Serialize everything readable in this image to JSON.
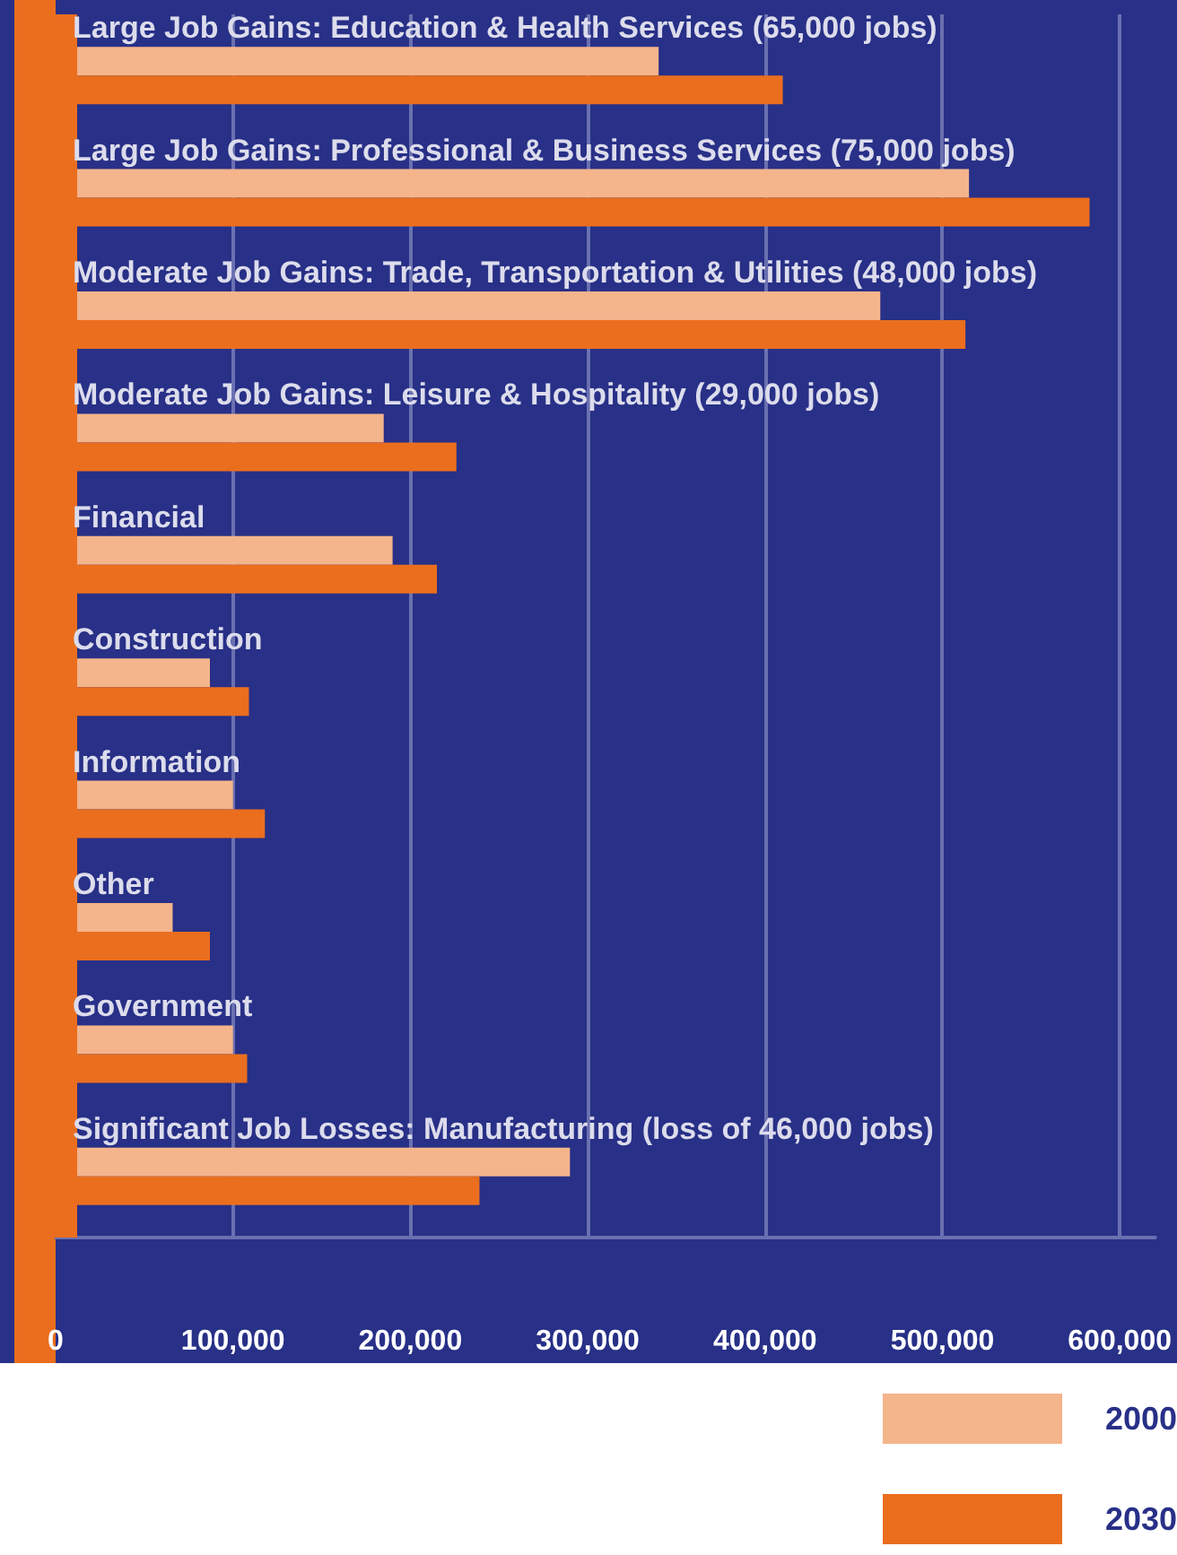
{
  "chart_data": {
    "type": "bar",
    "orientation": "horizontal",
    "categories": [
      "Large Job Gains: Education & Health Services (65,000 jobs)",
      "Large Job Gains: Professional & Business Services (75,000 jobs)",
      "Moderate Job Gains: Trade, Transportation & Utilities (48,000 jobs)",
      "Moderate Job Gains: Leisure & Hospitality (29,000 jobs)",
      "Financial",
      "Construction",
      "Information",
      "Other",
      "Government",
      "Significant Job Losses: Manufacturing (loss of 46,000 jobs)"
    ],
    "series": [
      {
        "name": "2000",
        "color": "#f4b48c",
        "values": [
          340000,
          515000,
          465000,
          185000,
          190000,
          87000,
          100000,
          66000,
          100000,
          290000
        ]
      },
      {
        "name": "2030",
        "color": "#ea6e1e",
        "values": [
          410000,
          583000,
          513000,
          226000,
          215000,
          109000,
          118000,
          87000,
          108000,
          239000
        ]
      }
    ],
    "xlim": [
      0,
      620000
    ],
    "xticks": [
      0,
      {
        "value": 100000,
        "label": "100,000"
      },
      {
        "value": 200000,
        "label": "200,000"
      },
      {
        "value": 300000,
        "label": "300,000"
      },
      {
        "value": 400000,
        "label": "400,000"
      },
      {
        "value": 500000,
        "label": "500,000"
      },
      {
        "value": 600000,
        "label": "600,000"
      }
    ],
    "grid": "x",
    "legend": "bottom right"
  }
}
